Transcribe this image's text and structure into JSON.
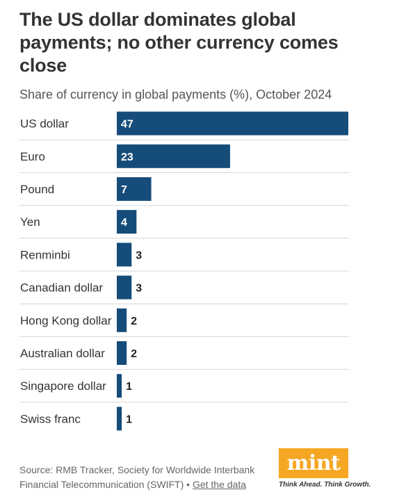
{
  "chart_data": {
    "type": "bar",
    "orientation": "horizontal",
    "title": "The US dollar dominates global payments; no other currency comes close",
    "subtitle": "Share of currency in global payments (%), October 2024",
    "categories": [
      "US dollar",
      "Euro",
      "Pound",
      "Yen",
      "Renminbi",
      "Canadian dollar",
      "Hong Kong dollar",
      "Australian dollar",
      "Singapore dollar",
      "Swiss franc"
    ],
    "values": [
      47,
      23,
      7,
      4,
      3,
      3,
      2,
      2,
      1,
      1
    ],
    "xlim": [
      0,
      47
    ],
    "grid": false,
    "bar_color": "#154c79",
    "label_inside_color": "#ffffff",
    "label_outside_color": "#222222"
  },
  "footer": {
    "source": "Source: RMB Tracker, Society for Worldwide Interbank Financial Telecommunication (SWIFT) •",
    "link": "Get the data"
  },
  "logo": {
    "word": "mint",
    "tagline": "Think Ahead. Think Growth.",
    "color": "#f5a623"
  }
}
